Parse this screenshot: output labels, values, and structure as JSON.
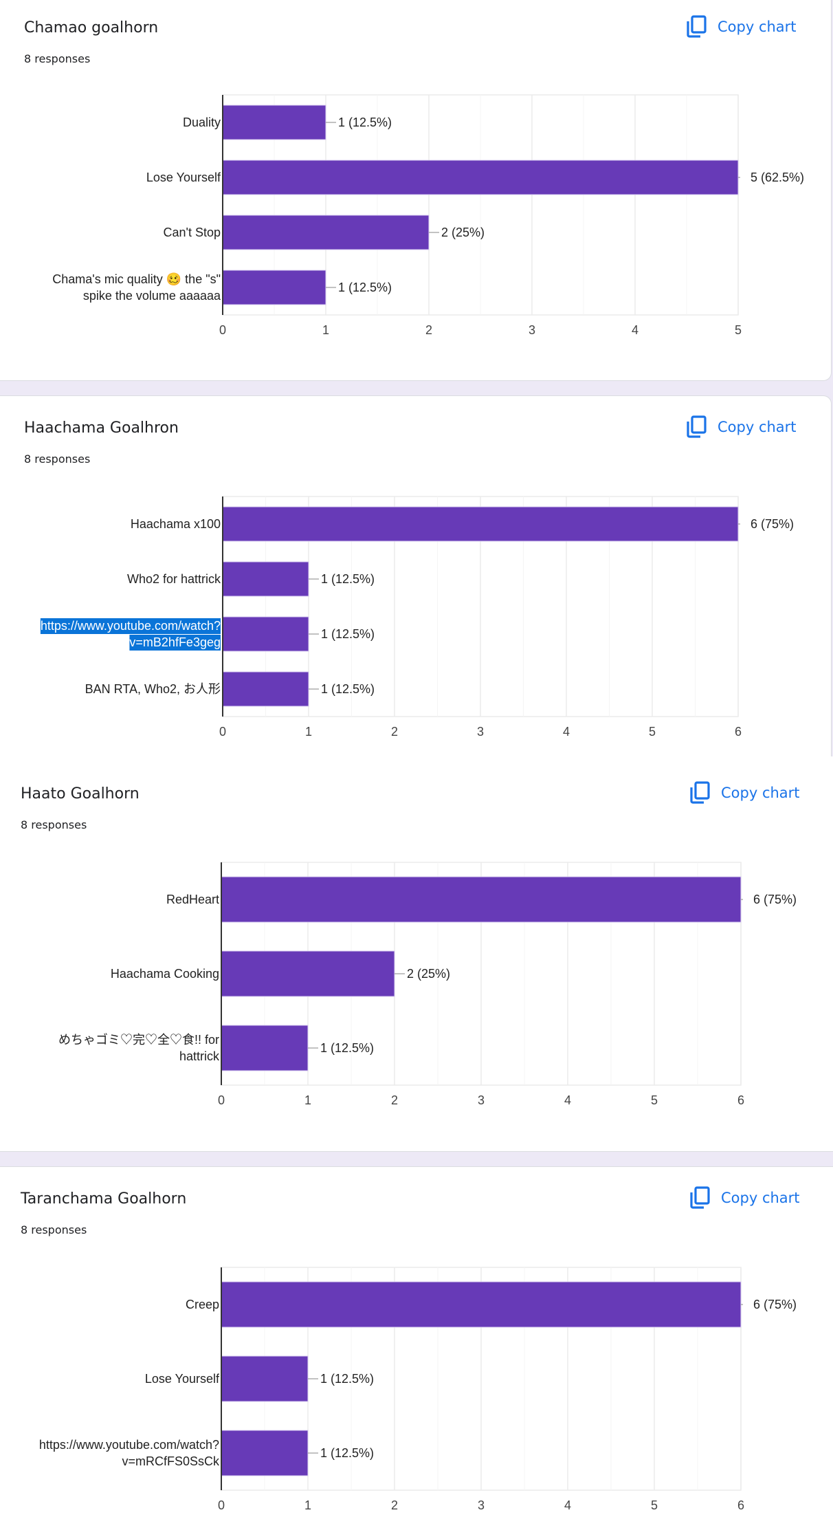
{
  "copy_label": "Copy chart",
  "colors": {
    "bar": "#673ab7",
    "accent": "#1a73e8",
    "background": "#ede9f6",
    "highlight": "#0a74d8"
  },
  "chart_data": [
    {
      "type": "bar",
      "orientation": "horizontal",
      "title": "Chamao goalhorn",
      "responses": "8 responses",
      "categories": [
        [
          "Duality"
        ],
        [
          "Lose Yourself"
        ],
        [
          "Can't Stop"
        ],
        [
          "Chama's mic quality 🥴 the \"s\"",
          "spike the volume aaaaaa"
        ]
      ],
      "values": [
        1,
        5,
        2,
        1
      ],
      "labels": [
        "1 (12.5%)",
        "5 (62.5%)",
        "2 (25%)",
        "1 (12.5%)"
      ],
      "xlim": [
        0,
        5
      ],
      "ticks": [
        "0",
        "1",
        "2",
        "3",
        "4",
        "5"
      ],
      "grid": true
    },
    {
      "type": "bar",
      "orientation": "horizontal",
      "title": "Haachama Goalhron",
      "responses": "8 responses",
      "categories": [
        [
          "Haachama x100"
        ],
        [
          "Who2 for hattrick"
        ],
        [
          "https://www.youtube.com/watch?",
          "v=mB2hfFe3geg"
        ],
        [
          "BAN RTA, Who2, お人形"
        ]
      ],
      "values": [
        6,
        1,
        1,
        1
      ],
      "labels": [
        "6 (75%)",
        "1 (12.5%)",
        "1 (12.5%)",
        "1 (12.5%)"
      ],
      "highlighted_category": 2,
      "xlim": [
        0,
        6
      ],
      "ticks": [
        "0",
        "1",
        "2",
        "3",
        "4",
        "5",
        "6"
      ],
      "grid": true
    },
    {
      "type": "bar",
      "orientation": "horizontal",
      "title": "Haato Goalhorn",
      "responses": "8 responses",
      "categories": [
        [
          "RedHeart"
        ],
        [
          "Haachama Cooking"
        ],
        [
          "めちゃゴミ♡完♡全♡食!! for",
          "hattrick"
        ]
      ],
      "values": [
        6,
        2,
        1
      ],
      "labels": [
        "6 (75%)",
        "2 (25%)",
        "1 (12.5%)"
      ],
      "xlim": [
        0,
        6
      ],
      "ticks": [
        "0",
        "1",
        "2",
        "3",
        "4",
        "5",
        "6"
      ],
      "grid": true
    },
    {
      "type": "bar",
      "orientation": "horizontal",
      "title": "Taranchama Goalhorn",
      "responses": "8 responses",
      "categories": [
        [
          "Creep"
        ],
        [
          "Lose Yourself"
        ],
        [
          "https://www.youtube.com/watch?",
          "v=mRCfFS0SsCk"
        ]
      ],
      "values": [
        6,
        1,
        1
      ],
      "labels": [
        "6 (75%)",
        "1 (12.5%)",
        "1 (12.5%)"
      ],
      "xlim": [
        0,
        6
      ],
      "ticks": [
        "0",
        "1",
        "2",
        "3",
        "4",
        "5",
        "6"
      ],
      "grid": true
    }
  ]
}
